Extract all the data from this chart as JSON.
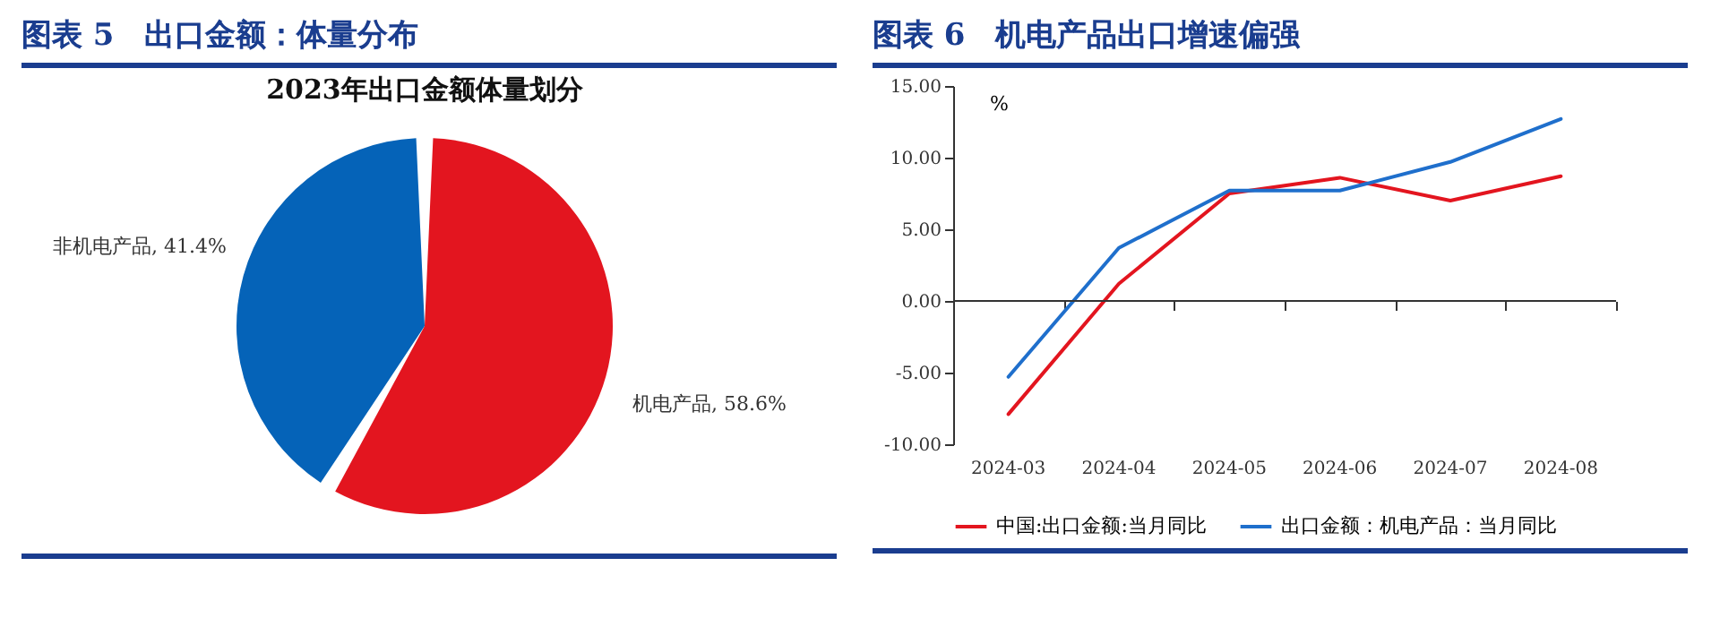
{
  "chart_data": [
    {
      "type": "pie",
      "title": "图表 5　出口金额：体量分布",
      "subtitle": "2023年出口金额体量划分",
      "categories": [
        "机电产品",
        "非机电产品"
      ],
      "values": [
        58.6,
        41.4
      ],
      "colors": [
        "#e3151f",
        "#0563b8"
      ],
      "value_labels": [
        "58.6%",
        "41.4%"
      ]
    },
    {
      "type": "line",
      "title": "图表 6　机电产品出口增速偏强",
      "ylabel": "%",
      "categories": [
        "2024-03",
        "2024-04",
        "2024-05",
        "2024-06",
        "2024-07",
        "2024-08"
      ],
      "series": [
        {
          "name": "中国:出口金额:当月同比",
          "color": "#e3151f",
          "values": [
            -7.9,
            1.2,
            7.5,
            8.6,
            7.0,
            8.7
          ]
        },
        {
          "name": "出口金额：机电产品：当月同比",
          "color": "#1f6fcc",
          "values": [
            -5.3,
            3.7,
            7.7,
            7.7,
            9.7,
            12.7
          ]
        }
      ],
      "ylim": [
        -10,
        15
      ],
      "yticks": [
        {
          "value": -10,
          "label": "-10.00"
        },
        {
          "value": -5,
          "label": "-5.00"
        },
        {
          "value": 0,
          "label": "0.00"
        },
        {
          "value": 5,
          "label": "5.00"
        },
        {
          "value": 10,
          "label": "10.00"
        },
        {
          "value": 15,
          "label": "15.00"
        }
      ],
      "ref_lines": [
        {
          "axis": "y",
          "value": 0
        }
      ],
      "grid": false,
      "legend": "bottom",
      "marker": "none",
      "line_style": "solid"
    }
  ]
}
